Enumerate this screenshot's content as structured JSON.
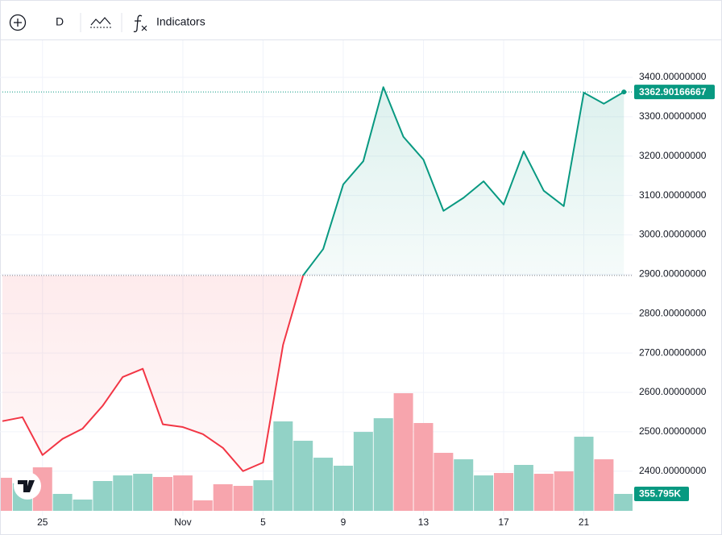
{
  "toolbar": {
    "interval": "D",
    "indicators": "Indicators"
  },
  "chart_data": {
    "type": "baseline",
    "categories": [
      null,
      null,
      "25",
      null,
      null,
      null,
      null,
      null,
      null,
      "Nov",
      null,
      null,
      null,
      "5",
      null,
      null,
      null,
      "9",
      null,
      null,
      null,
      "13",
      null,
      null,
      null,
      "17",
      null,
      null,
      null,
      "21",
      null,
      null
    ],
    "series": [
      {
        "name": "Price",
        "color_above": "#089981",
        "color_below": "#f23645",
        "values": [
          2527,
          2537,
          2441,
          2482,
          2508,
          2566,
          2639,
          2660,
          2519,
          2512,
          2494,
          2459,
          2400,
          2422,
          2721,
          2897,
          2964,
          3128,
          3187,
          3375,
          3249,
          3191,
          3061,
          3094,
          3136,
          3077,
          3212,
          3112,
          3073,
          3361,
          3333,
          3362.90166667
        ],
        "last_label": "3362.90166667"
      },
      {
        "name": "Volume",
        "axis": "volume",
        "values": [
          695000,
          580000,
          915000,
          356000,
          237000,
          627000,
          745000,
          779000,
          712000,
          745000,
          220000,
          559000,
          525000,
          644000,
          1881000,
          1474000,
          1118000,
          949000,
          1660000,
          1948000,
          2474000,
          1847000,
          1220000,
          1084000,
          745000,
          796000,
          966000,
          779000,
          830000,
          1559000,
          1084000,
          355795
        ],
        "colors": [
          "#f7a5ad",
          "#92d2c6",
          "#f7a5ad",
          "#92d2c6",
          "#92d2c6",
          "#92d2c6",
          "#92d2c6",
          "#92d2c6",
          "#f7a5ad",
          "#f7a5ad",
          "#f7a5ad",
          "#f7a5ad",
          "#f7a5ad",
          "#92d2c6",
          "#92d2c6",
          "#92d2c6",
          "#92d2c6",
          "#92d2c6",
          "#92d2c6",
          "#92d2c6",
          "#f7a5ad",
          "#f7a5ad",
          "#f7a5ad",
          "#92d2c6",
          "#92d2c6",
          "#f7a5ad",
          "#92d2c6",
          "#f7a5ad",
          "#f7a5ad",
          "#92d2c6",
          "#f7a5ad",
          "#92d2c6"
        ],
        "last_label": "355.795K"
      }
    ],
    "baseline": 2897,
    "ylim": [
      2287,
      3494
    ],
    "volume_ylim": [
      0,
      10000000
    ],
    "yticks": [
      {
        "value": 2400,
        "label": "2400.00000000"
      },
      {
        "value": 2500,
        "label": "2500.00000000"
      },
      {
        "value": 2600,
        "label": "2600.00000000"
      },
      {
        "value": 2700,
        "label": "2700.00000000"
      },
      {
        "value": 2800,
        "label": "2800.00000000"
      },
      {
        "value": 2900,
        "label": "2900.00000000"
      },
      {
        "value": 3000,
        "label": "3000.00000000"
      },
      {
        "value": 3100,
        "label": "3100.00000000"
      },
      {
        "value": 3200,
        "label": "3200.00000000"
      },
      {
        "value": 3300,
        "label": "3300.00000000"
      },
      {
        "value": 3400,
        "label": "3400.00000000"
      }
    ],
    "grid": true
  }
}
